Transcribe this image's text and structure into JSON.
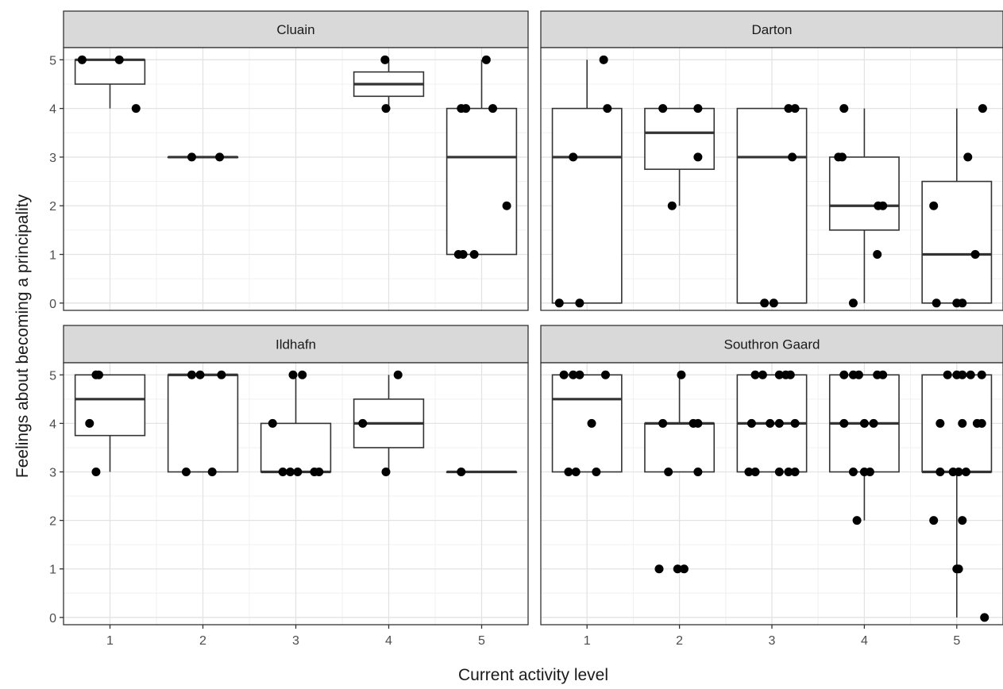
{
  "chart_data": {
    "type": "box",
    "facet_layout": "2x2 grid",
    "xlabel": "Current activity level",
    "ylabel": "Feelings about becoming a principality",
    "x_categories": [
      "1",
      "2",
      "3",
      "4",
      "5"
    ],
    "y_ticks": [
      0,
      1,
      2,
      3,
      4,
      5
    ],
    "ylim": [
      -0.15,
      5.25
    ],
    "grid": true,
    "panels": [
      {
        "title": "Cluain",
        "boxes": [
          {
            "x": 1,
            "lower": 4,
            "q1": 4.5,
            "median": 5,
            "q3": 5,
            "upper": 5
          },
          {
            "x": 2,
            "lower": 3,
            "q1": 3,
            "median": 3,
            "q3": 3,
            "upper": 3
          },
          {
            "x": 4,
            "lower": 4,
            "q1": 4.25,
            "median": 4.5,
            "q3": 4.75,
            "upper": 5
          },
          {
            "x": 5,
            "lower": 1,
            "q1": 1,
            "median": 3,
            "q3": 4,
            "upper": 5
          }
        ],
        "points": [
          [
            0.7,
            5
          ],
          [
            1.1,
            5
          ],
          [
            1.28,
            4
          ],
          [
            1.88,
            3
          ],
          [
            2.18,
            3
          ],
          [
            3.96,
            5
          ],
          [
            3.97,
            4
          ],
          [
            4.75,
            1
          ],
          [
            4.8,
            1
          ],
          [
            4.92,
            1
          ],
          [
            4.78,
            4
          ],
          [
            4.83,
            4
          ],
          [
            5.12,
            4
          ],
          [
            5.05,
            5
          ],
          [
            5.27,
            2
          ]
        ]
      },
      {
        "title": "Darton",
        "boxes": [
          {
            "x": 1,
            "lower": 0,
            "q1": 0,
            "median": 3,
            "q3": 4,
            "upper": 5
          },
          {
            "x": 2,
            "lower": 2,
            "q1": 2.75,
            "median": 3.5,
            "q3": 4,
            "upper": 4
          },
          {
            "x": 3,
            "lower": 0,
            "q1": 0,
            "median": 3,
            "q3": 4,
            "upper": 4
          },
          {
            "x": 4,
            "lower": 0,
            "q1": 1.5,
            "median": 2,
            "q3": 3,
            "upper": 4
          },
          {
            "x": 5,
            "lower": 0,
            "q1": 0,
            "median": 1,
            "q3": 2.5,
            "upper": 4
          }
        ],
        "points": [
          [
            0.7,
            0
          ],
          [
            0.92,
            0
          ],
          [
            0.85,
            3
          ],
          [
            1.18,
            5
          ],
          [
            1.22,
            4
          ],
          [
            1.82,
            4
          ],
          [
            2.2,
            4
          ],
          [
            1.92,
            2
          ],
          [
            2.2,
            3
          ],
          [
            2.92,
            0
          ],
          [
            3.02,
            0
          ],
          [
            3.18,
            4
          ],
          [
            3.25,
            4
          ],
          [
            3.22,
            3
          ],
          [
            3.72,
            3
          ],
          [
            3.76,
            3
          ],
          [
            3.78,
            4
          ],
          [
            4.15,
            2
          ],
          [
            4.2,
            2
          ],
          [
            3.88,
            0
          ],
          [
            4.14,
            1
          ],
          [
            4.75,
            2
          ],
          [
            4.78,
            0
          ],
          [
            5.0,
            0
          ],
          [
            5.06,
            0
          ],
          [
            5.12,
            3
          ],
          [
            5.2,
            1
          ],
          [
            5.28,
            4
          ]
        ]
      },
      {
        "title": "Ildhafn",
        "boxes": [
          {
            "x": 1,
            "lower": 3,
            "q1": 3.75,
            "median": 4.5,
            "q3": 5,
            "upper": 5
          },
          {
            "x": 2,
            "lower": 3,
            "q1": 3,
            "median": 5,
            "q3": 5,
            "upper": 5
          },
          {
            "x": 3,
            "lower": 3,
            "q1": 3,
            "median": 3,
            "q3": 4,
            "upper": 5
          },
          {
            "x": 4,
            "lower": 3,
            "q1": 3.5,
            "median": 4,
            "q3": 4.5,
            "upper": 5
          },
          {
            "x": 5,
            "lower": 3,
            "q1": 3,
            "median": 3,
            "q3": 3,
            "upper": 3
          }
        ],
        "points": [
          [
            0.85,
            3
          ],
          [
            0.78,
            4
          ],
          [
            0.85,
            5
          ],
          [
            0.88,
            5
          ],
          [
            1.82,
            3
          ],
          [
            2.1,
            3
          ],
          [
            1.88,
            5
          ],
          [
            1.97,
            5
          ],
          [
            2.2,
            5
          ],
          [
            2.75,
            4
          ],
          [
            2.86,
            3
          ],
          [
            2.94,
            3
          ],
          [
            3.02,
            3
          ],
          [
            3.2,
            3
          ],
          [
            3.25,
            3
          ],
          [
            2.97,
            5
          ],
          [
            3.07,
            5
          ],
          [
            3.72,
            4
          ],
          [
            3.97,
            3
          ],
          [
            4.1,
            5
          ],
          [
            4.78,
            3
          ]
        ]
      },
      {
        "title": "Southron Gaard",
        "boxes": [
          {
            "x": 1,
            "lower": 3,
            "q1": 3,
            "median": 4.5,
            "q3": 5,
            "upper": 5
          },
          {
            "x": 2,
            "lower": 3,
            "q1": 3,
            "median": 4,
            "q3": 4,
            "upper": 5
          },
          {
            "x": 3,
            "lower": 3,
            "q1": 3,
            "median": 4,
            "q3": 5,
            "upper": 5
          },
          {
            "x": 4,
            "lower": 2,
            "q1": 3,
            "median": 4,
            "q3": 5,
            "upper": 5
          },
          {
            "x": 5,
            "lower": 0,
            "q1": 3,
            "median": 3,
            "q3": 5,
            "upper": 5
          }
        ],
        "points": [
          [
            0.75,
            5
          ],
          [
            0.85,
            5
          ],
          [
            0.92,
            5
          ],
          [
            1.2,
            5
          ],
          [
            1.05,
            4
          ],
          [
            0.8,
            3
          ],
          [
            0.88,
            3
          ],
          [
            1.1,
            3
          ],
          [
            2.02,
            5
          ],
          [
            1.82,
            4
          ],
          [
            2.15,
            4
          ],
          [
            2.2,
            4
          ],
          [
            1.88,
            3
          ],
          [
            2.2,
            3
          ],
          [
            1.78,
            1
          ],
          [
            1.98,
            1
          ],
          [
            2.05,
            1
          ],
          [
            2.82,
            5
          ],
          [
            2.9,
            5
          ],
          [
            3.08,
            5
          ],
          [
            3.15,
            5
          ],
          [
            3.2,
            5
          ],
          [
            2.78,
            4
          ],
          [
            2.98,
            4
          ],
          [
            3.08,
            4
          ],
          [
            3.25,
            4
          ],
          [
            2.75,
            3
          ],
          [
            2.82,
            3
          ],
          [
            3.08,
            3
          ],
          [
            3.18,
            3
          ],
          [
            3.25,
            3
          ],
          [
            3.78,
            5
          ],
          [
            3.88,
            5
          ],
          [
            3.94,
            5
          ],
          [
            4.14,
            5
          ],
          [
            4.2,
            5
          ],
          [
            3.78,
            4
          ],
          [
            4.0,
            4
          ],
          [
            4.1,
            4
          ],
          [
            3.88,
            3
          ],
          [
            4.0,
            3
          ],
          [
            4.06,
            3
          ],
          [
            3.92,
            2
          ],
          [
            4.9,
            5
          ],
          [
            5.0,
            5
          ],
          [
            5.06,
            5
          ],
          [
            5.15,
            5
          ],
          [
            5.27,
            5
          ],
          [
            4.82,
            4
          ],
          [
            5.06,
            4
          ],
          [
            5.22,
            4
          ],
          [
            5.27,
            4
          ],
          [
            4.82,
            3
          ],
          [
            4.96,
            3
          ],
          [
            5.02,
            3
          ],
          [
            5.1,
            3
          ],
          [
            4.75,
            2
          ],
          [
            5.06,
            2
          ],
          [
            5.0,
            1
          ],
          [
            5.02,
            1
          ],
          [
            5.3,
            0
          ]
        ]
      }
    ]
  }
}
